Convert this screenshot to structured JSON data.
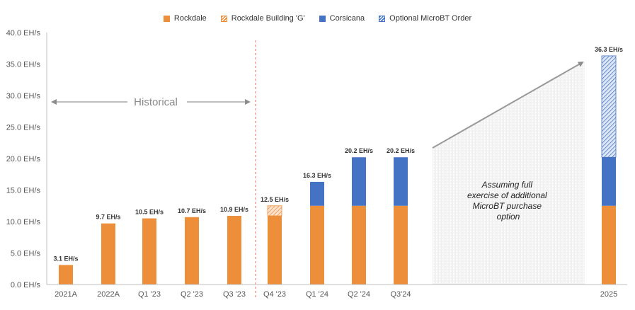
{
  "legend": [
    {
      "label": "Rockdale",
      "color": "#ED8E3B",
      "pattern": "solid"
    },
    {
      "label": "Rockdale Building 'G'",
      "color": "#ED8E3B",
      "pattern": "hatched"
    },
    {
      "label": "Corsicana",
      "color": "#4472C4",
      "pattern": "solid"
    },
    {
      "label": "Optional MicroBT Order",
      "color": "#4472C4",
      "pattern": "hatched"
    }
  ],
  "annotations": {
    "historical": "Historical",
    "assumption_lines": [
      "Assuming full",
      "exercise of additional",
      "MicroBT purchase",
      "option"
    ]
  },
  "chart_data": {
    "type": "bar",
    "stacked": true,
    "categories": [
      "2021A",
      "2022A",
      "Q1 '23",
      "Q2 '23",
      "Q3 '23",
      "Q4 '23",
      "Q1 '24",
      "Q2 '24",
      "Q3'24",
      "2025"
    ],
    "series": [
      {
        "name": "Rockdale",
        "color": "#ED8E3B",
        "pattern": "solid",
        "values": [
          3.1,
          9.7,
          10.5,
          10.7,
          10.9,
          10.9,
          12.5,
          12.5,
          12.5,
          12.5
        ]
      },
      {
        "name": "Rockdale Building 'G'",
        "color": "#ED8E3B",
        "pattern": "hatched",
        "values": [
          0,
          0,
          0,
          0,
          0,
          1.6,
          0,
          0,
          0,
          0
        ]
      },
      {
        "name": "Corsicana",
        "color": "#4472C4",
        "pattern": "solid",
        "values": [
          0,
          0,
          0,
          0,
          0,
          0,
          3.8,
          7.7,
          7.7,
          7.7
        ]
      },
      {
        "name": "Optional MicroBT Order",
        "color": "#4472C4",
        "pattern": "hatched",
        "values": [
          0,
          0,
          0,
          0,
          0,
          0,
          0,
          0,
          0,
          16.1
        ]
      }
    ],
    "totals": [
      "3.1 EH/s",
      "9.7 EH/s",
      "10.5 EH/s",
      "10.7 EH/s",
      "10.9 EH/s",
      "12.5 EH/s",
      "16.3 EH/s",
      "20.2 EH/s",
      "20.2 EH/s",
      "36.3 EH/s"
    ],
    "ylim": [
      0,
      40
    ],
    "yticks": [
      "0.0 EH/s",
      "5.0 EH/s",
      "10.0 EH/s",
      "15.0 EH/s",
      "20.0 EH/s",
      "25.0 EH/s",
      "30.0 EH/s",
      "35.0 EH/s",
      "40.0 EH/s"
    ],
    "grid": false,
    "legend_position": "top-center",
    "title": "",
    "xlabel": "",
    "ylabel": ""
  }
}
